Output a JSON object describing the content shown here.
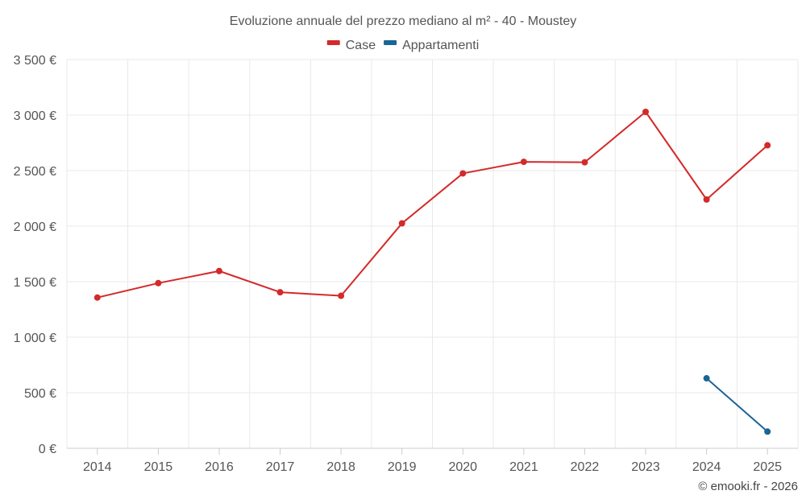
{
  "chart_data": {
    "type": "line",
    "title": "Evoluzione annuale del prezzo mediano al m² - 40 - Moustey",
    "categories": [
      "2014",
      "2015",
      "2016",
      "2017",
      "2018",
      "2019",
      "2020",
      "2021",
      "2022",
      "2023",
      "2024",
      "2025"
    ],
    "series": [
      {
        "name": "Case",
        "color": "#d32a2a",
        "values": [
          1357,
          1487,
          1596,
          1405,
          1373,
          2025,
          2475,
          2579,
          2575,
          3029,
          2240,
          2728
        ]
      },
      {
        "name": "Appartamenti",
        "color": "#1a6496",
        "values": [
          null,
          null,
          null,
          null,
          null,
          null,
          null,
          null,
          null,
          null,
          630,
          150
        ]
      }
    ],
    "ylim": [
      0,
      3500
    ],
    "yticks": [
      0,
      500,
      1000,
      1500,
      2000,
      2500,
      3000,
      3500
    ],
    "ytick_labels": [
      "0 €",
      "500 €",
      "1 000 €",
      "1 500 €",
      "2 000 €",
      "2 500 €",
      "3 000 €",
      "3 500 €"
    ],
    "xlabel": "",
    "ylabel": "",
    "grid": true,
    "legend_position": "top-center"
  },
  "credit": "© emooki.fr - 2026"
}
